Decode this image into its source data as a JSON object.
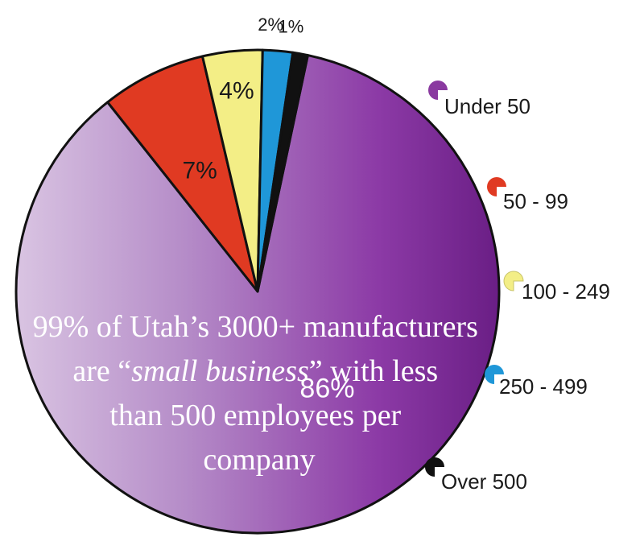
{
  "chart_data": {
    "type": "pie",
    "title": "",
    "categories": [
      "Under 50",
      "50 - 99",
      "100 - 249",
      "250 - 499",
      "Over 500"
    ],
    "values": [
      86,
      7,
      4,
      2,
      1
    ],
    "value_labels": [
      "86%",
      "7%",
      "4%",
      "2%",
      "1%"
    ],
    "colors": [
      "#8a3aa0",
      "#e03a22",
      "#f3ee86",
      "#1f97d8",
      "#111111"
    ],
    "legend_position": "right",
    "annotation": {
      "line1": "99% of Utah’s 3000+ manufacturers",
      "line2_pre": "are “",
      "line2_italic": "small business",
      "line2_post": "” with less",
      "line3": "than 500 employees per",
      "line4": "company"
    }
  }
}
